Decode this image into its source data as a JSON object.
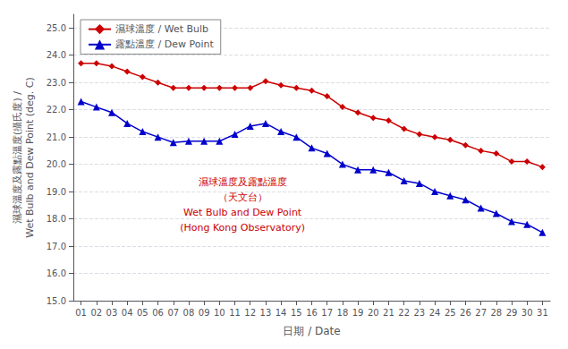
{
  "chart_data": {
    "type": "line",
    "xlabel": "日期 / Date",
    "ylabel": "濕球溫度及露點溫度(攝氏度) /\nWet Bulb and Dew Point (deg. C)",
    "x": [
      1,
      2,
      3,
      4,
      5,
      6,
      7,
      8,
      9,
      10,
      11,
      12,
      13,
      14,
      15,
      16,
      17,
      18,
      19,
      20,
      21,
      22,
      23,
      24,
      25,
      26,
      27,
      28,
      29,
      30,
      31
    ],
    "series": [
      {
        "name": "濕球溫度 / Wet Bulb",
        "color": "#cc0000",
        "marker": "diamond",
        "values": [
          23.7,
          23.7,
          23.6,
          23.4,
          23.2,
          23.0,
          22.8,
          22.8,
          22.8,
          22.8,
          22.8,
          22.8,
          23.05,
          22.9,
          22.8,
          22.7,
          22.5,
          22.1,
          21.9,
          21.7,
          21.6,
          21.3,
          21.1,
          21.0,
          20.9,
          20.7,
          20.5,
          20.4,
          20.1,
          20.1,
          19.9
        ]
      },
      {
        "name": "露點溫度 / Dew Point",
        "color": "#0000cc",
        "marker": "triangle",
        "values": [
          22.3,
          22.1,
          21.9,
          21.5,
          21.2,
          21.0,
          20.8,
          20.85,
          20.85,
          20.85,
          21.1,
          21.4,
          21.5,
          21.2,
          21.0,
          20.6,
          20.4,
          20.0,
          19.8,
          19.8,
          19.7,
          19.4,
          19.3,
          19.0,
          18.85,
          18.7,
          18.4,
          18.2,
          17.9,
          17.8,
          17.5
        ]
      }
    ],
    "xlim": [
      0.5,
      31.5
    ],
    "xticks": [
      {
        "value": 1,
        "label": "01"
      },
      {
        "value": 2,
        "label": "02"
      },
      {
        "value": 3,
        "label": "03"
      },
      {
        "value": 4,
        "label": "04"
      },
      {
        "value": 5,
        "label": "05"
      },
      {
        "value": 6,
        "label": "06"
      },
      {
        "value": 7,
        "label": "07"
      },
      {
        "value": 8,
        "label": "08"
      },
      {
        "value": 9,
        "label": "09"
      },
      {
        "value": 10,
        "label": "10"
      },
      {
        "value": 11,
        "label": "11"
      },
      {
        "value": 12,
        "label": "12"
      },
      {
        "value": 13,
        "label": "13"
      },
      {
        "value": 14,
        "label": "14"
      },
      {
        "value": 15,
        "label": "15"
      },
      {
        "value": 16,
        "label": "16"
      },
      {
        "value": 17,
        "label": "17"
      },
      {
        "value": 18,
        "label": "18"
      },
      {
        "value": 19,
        "label": "19"
      },
      {
        "value": 20,
        "label": "20"
      },
      {
        "value": 21,
        "label": "21"
      },
      {
        "value": 22,
        "label": "22"
      },
      {
        "value": 23,
        "label": "23"
      },
      {
        "value": 24,
        "label": "24"
      },
      {
        "value": 25,
        "label": "25"
      },
      {
        "value": 26,
        "label": "26"
      },
      {
        "value": 27,
        "label": "27"
      },
      {
        "value": 28,
        "label": "28"
      },
      {
        "value": 29,
        "label": "29"
      },
      {
        "value": 30,
        "label": "30"
      },
      {
        "value": 31,
        "label": "31"
      }
    ],
    "ylim": [
      15.0,
      25.5
    ],
    "yticks": [
      {
        "value": 15.0,
        "label": "15.0"
      },
      {
        "value": 16.0,
        "label": "16.0"
      },
      {
        "value": 17.0,
        "label": "17.0"
      },
      {
        "value": 18.0,
        "label": "18.0"
      },
      {
        "value": 19.0,
        "label": "19.0"
      },
      {
        "value": 20.0,
        "label": "20.0"
      },
      {
        "value": 21.0,
        "label": "21.0"
      },
      {
        "value": 22.0,
        "label": "22.0"
      },
      {
        "value": 23.0,
        "label": "23.0"
      },
      {
        "value": 24.0,
        "label": "24.0"
      },
      {
        "value": 25.0,
        "label": "25.0"
      }
    ],
    "grid": true,
    "legend": "upper left",
    "annotations": [
      {
        "text": "濕球溫度及露點溫度\n（天文台）\nWet Bulb and Dew Point\n(Hong Kong Observatory)",
        "x": 11.5,
        "y": 18.5,
        "color": "#cc0000"
      }
    ]
  }
}
